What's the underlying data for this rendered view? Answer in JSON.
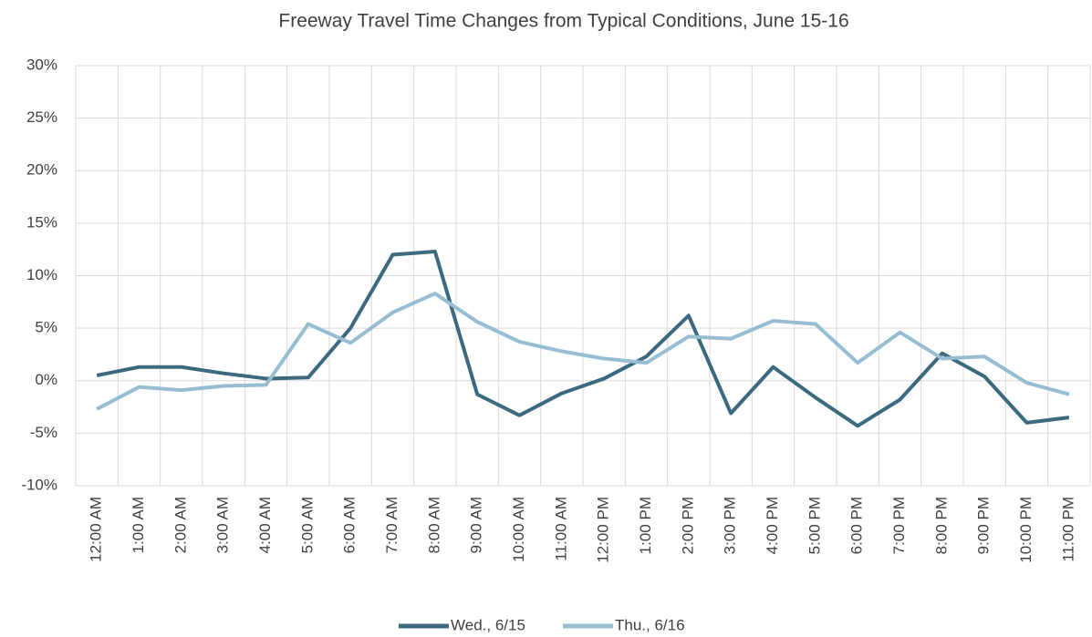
{
  "chart_data": {
    "type": "line",
    "title": "Freeway Travel Time Changes from Typical Conditions, June 15-16",
    "categories": [
      "12:00 AM",
      "1:00 AM",
      "2:00 AM",
      "3:00 AM",
      "4:00 AM",
      "5:00 AM",
      "6:00 AM",
      "7:00 AM",
      "8:00 AM",
      "9:00 AM",
      "10:00 AM",
      "11:00 AM",
      "12:00 PM",
      "1:00 PM",
      "2:00 PM",
      "3:00 PM",
      "4:00 PM",
      "5:00 PM",
      "6:00 PM",
      "7:00 PM",
      "8:00 PM",
      "9:00 PM",
      "10:00 PM",
      "11:00 PM"
    ],
    "series": [
      {
        "name": "Wed., 6/15",
        "color": "#3b6a80",
        "values": [
          0.5,
          1.3,
          1.3,
          0.7,
          0.2,
          0.3,
          5.0,
          12.0,
          12.3,
          -1.3,
          -3.3,
          -1.2,
          0.2,
          2.3,
          6.2,
          -3.1,
          1.3,
          -1.6,
          -4.3,
          -1.8,
          2.6,
          0.4,
          -4.0,
          -3.5
        ]
      },
      {
        "name": "Thu., 6/16",
        "color": "#96bdd2",
        "values": [
          -2.7,
          -0.6,
          -0.9,
          -0.5,
          -0.4,
          5.4,
          3.6,
          6.5,
          8.3,
          5.6,
          3.7,
          2.8,
          2.1,
          1.7,
          4.2,
          4.0,
          5.7,
          5.4,
          1.7,
          4.6,
          2.1,
          2.3,
          -0.2,
          -1.3
        ]
      }
    ],
    "ylim": [
      -10,
      30
    ],
    "yticks": [
      {
        "value": -10,
        "label": "-10%"
      },
      {
        "value": -5,
        "label": "-5%"
      },
      {
        "value": 0,
        "label": "0%"
      },
      {
        "value": 5,
        "label": "5%"
      },
      {
        "value": 10,
        "label": "10%"
      },
      {
        "value": 15,
        "label": "15%"
      },
      {
        "value": 20,
        "label": "20%"
      },
      {
        "value": 25,
        "label": "25%"
      },
      {
        "value": 30,
        "label": "30%"
      }
    ],
    "grid": true,
    "legend": "bottom"
  }
}
